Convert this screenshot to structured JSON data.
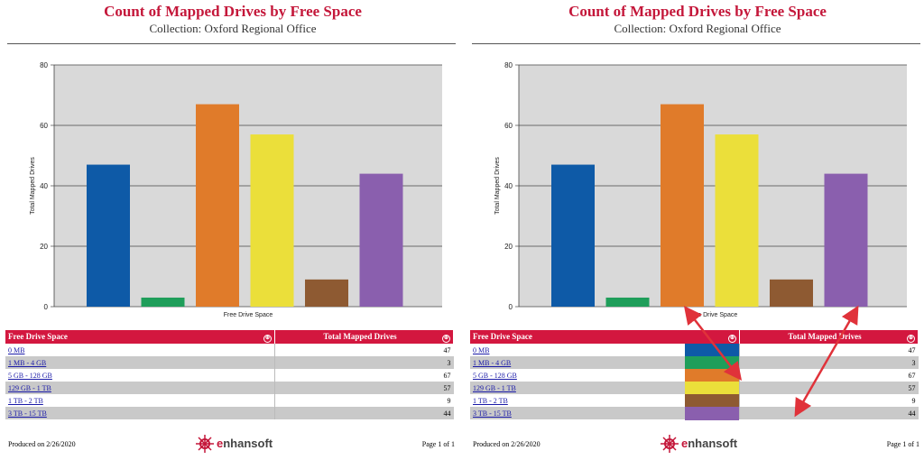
{
  "report": {
    "title": "Count of Mapped Drives by Free Space",
    "subtitle": "Collection: Oxford Regional Office"
  },
  "chart_data": {
    "type": "bar",
    "categories": [
      "0 MB",
      "1 MB - 4 GB",
      "5 GB - 128 GB",
      "129 GB - 1 TB",
      "1 TB - 2 TB",
      "3 TB - 15 TB"
    ],
    "values": [
      47,
      3,
      67,
      57,
      9,
      44
    ],
    "colors": [
      "#0e5aa7",
      "#1f9e5a",
      "#e07b2a",
      "#ebdf3a",
      "#8e5a32",
      "#8a5fae"
    ],
    "xlabel": "Free Drive Space",
    "ylabel": "Total Mapped Drives",
    "ylim": [
      0,
      80
    ],
    "yticks": [
      0,
      20,
      40,
      60,
      80
    ],
    "grid": true,
    "plot_background": "#d9d9d9"
  },
  "table": {
    "headers": [
      "Free Drive Space",
      "Total Mapped Drives"
    ],
    "sort_icon": "sort-icon"
  },
  "footer": {
    "produced": "Produced on 2/26/2020",
    "page": "Page 1 of 1",
    "logo_brand": "nhansoft",
    "logo_letter": "e"
  },
  "annotation": {
    "arrow_color": "#e0323a"
  }
}
